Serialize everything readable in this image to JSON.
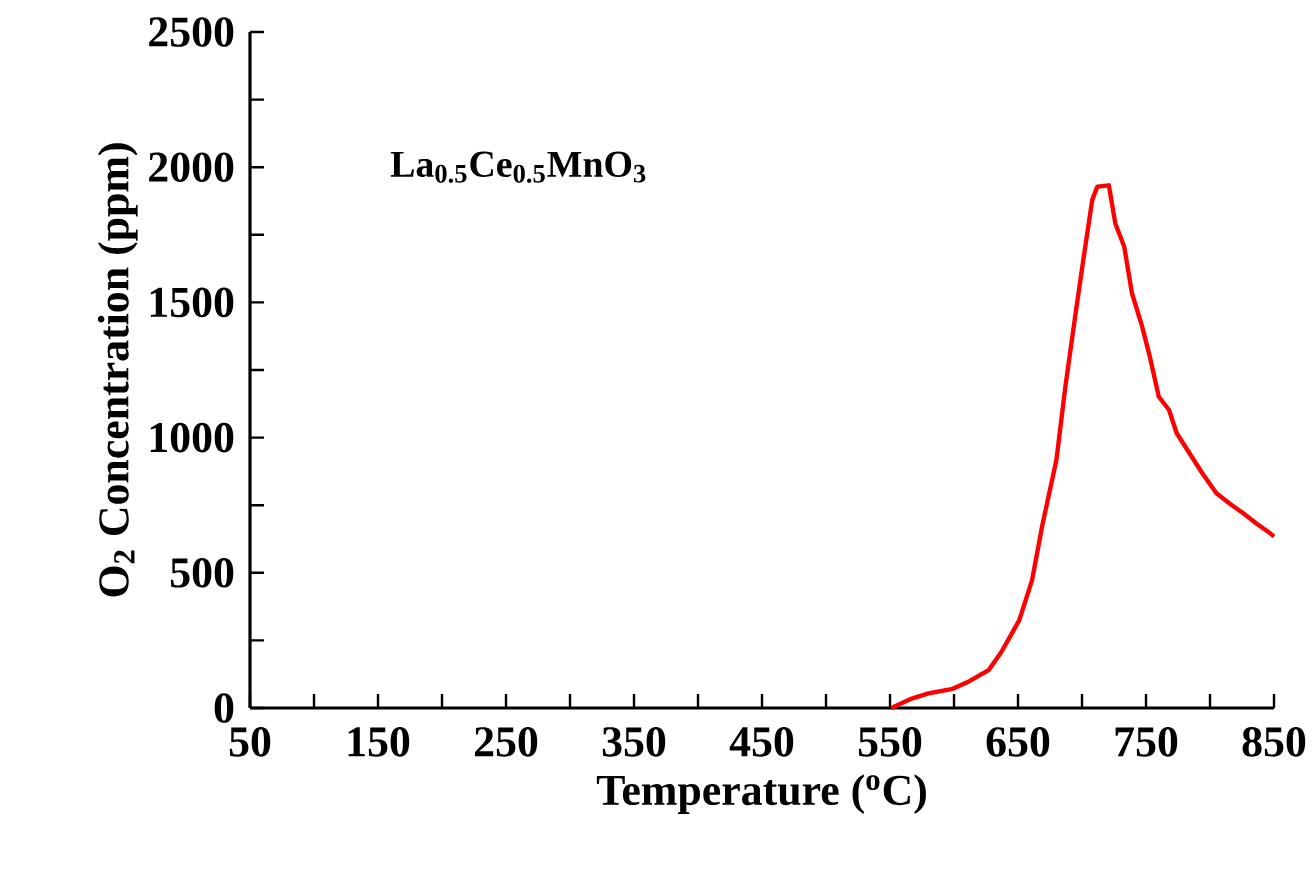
{
  "chart_data": {
    "type": "line",
    "xlabel": "Temperature ($^{o}$C)",
    "ylabel": "O$_{2}$ Concentration (ppm)",
    "annotations": [
      "La$_{0.5}$Ce$_{0.5}$MnO$_{3}$"
    ],
    "xlim": [
      50,
      850
    ],
    "ylim": [
      0,
      2500
    ],
    "xticks": [
      50,
      {
        "value": 100,
        "label": null
      },
      150,
      {
        "value": 200,
        "label": null
      },
      250,
      {
        "value": 300,
        "label": null
      },
      350,
      {
        "value": 400,
        "label": null
      },
      450,
      {
        "value": 500,
        "label": null
      },
      550,
      {
        "value": 600,
        "label": null
      },
      650,
      {
        "value": 700,
        "label": null
      },
      750,
      {
        "value": 800,
        "label": null
      },
      850
    ],
    "yticks": [
      0,
      {
        "value": 250,
        "label": null
      },
      500,
      {
        "value": 750,
        "label": null
      },
      1000,
      {
        "value": 1250,
        "label": null
      },
      1500,
      {
        "value": 1750,
        "label": null
      },
      2000,
      {
        "value": 2250,
        "label": null
      },
      2500
    ],
    "grid": false,
    "marker": "none",
    "line_style": "solid",
    "series": [
      {
        "color": "#ff0000",
        "x": [
          551,
          567,
          580,
          599,
          612,
          627,
          637,
          651,
          661,
          669,
          680,
          687,
          695,
          701,
          708,
          712,
          721,
          726,
          733,
          739,
          747,
          753,
          760,
          768,
          774,
          784,
          794,
          805,
          815,
          826,
          836,
          847,
          850
        ],
        "values": [
          0,
          35,
          54,
          71,
          99,
          140,
          207,
          325,
          473,
          676,
          917,
          1188,
          1460,
          1657,
          1879,
          1928,
          1933,
          1792,
          1706,
          1534,
          1410,
          1299,
          1151,
          1102,
          1016,
          942,
          868,
          794,
          757,
          720,
          683,
          646,
          634
        ]
      }
    ]
  }
}
